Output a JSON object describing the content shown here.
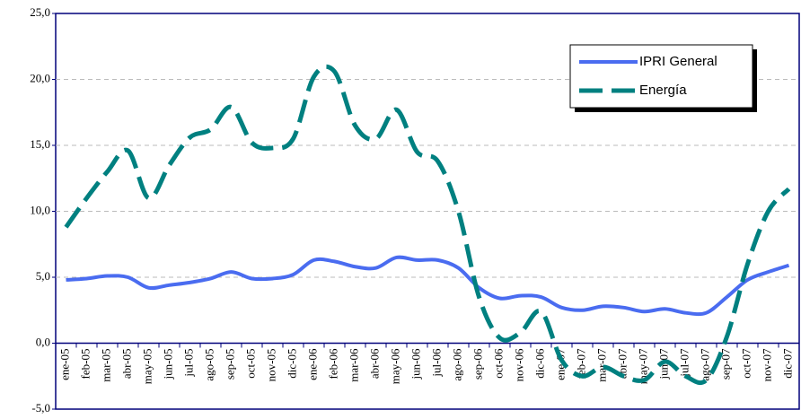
{
  "chart_data": {
    "type": "line",
    "categories": [
      "ene-05",
      "feb-05",
      "mar-05",
      "abr-05",
      "may-05",
      "jun-05",
      "jul-05",
      "ago-05",
      "sep-05",
      "oct-05",
      "nov-05",
      "dic-05",
      "ene-06",
      "feb-06",
      "mar-06",
      "abr-06",
      "may-06",
      "jun-06",
      "jul-06",
      "ago-06",
      "sep-06",
      "oct-06",
      "nov-06",
      "dic-06",
      "ene-07",
      "feb-07",
      "mar-07",
      "abr-07",
      "may-07",
      "jun-07",
      "jul-07",
      "ago-07",
      "sep-07",
      "oct-07",
      "nov-07",
      "dic-07"
    ],
    "series": [
      {
        "name": "IPRI General",
        "color": "#4a6cf0",
        "dashed": false,
        "values": [
          4.8,
          4.9,
          5.1,
          5.0,
          4.2,
          4.4,
          4.6,
          4.9,
          5.4,
          4.9,
          4.9,
          5.2,
          6.3,
          6.2,
          5.8,
          5.7,
          6.5,
          6.3,
          6.3,
          5.7,
          4.2,
          3.4,
          3.6,
          3.5,
          2.7,
          2.5,
          2.8,
          2.7,
          2.4,
          2.6,
          2.3,
          2.3,
          3.5,
          4.8,
          5.4,
          5.9
        ]
      },
      {
        "name": "Energía",
        "color": "#008080",
        "dashed": true,
        "values": [
          8.8,
          11.0,
          13.0,
          14.6,
          11.0,
          13.5,
          15.6,
          16.2,
          17.9,
          15.2,
          14.8,
          15.5,
          20.2,
          20.6,
          16.5,
          15.5,
          17.7,
          14.5,
          13.8,
          10.0,
          3.5,
          0.4,
          0.8,
          2.4,
          -1.3,
          -2.5,
          -1.8,
          -2.5,
          -2.8,
          -1.4,
          -2.5,
          -2.8,
          0.5,
          6.0,
          10.0,
          11.7
        ]
      }
    ],
    "ylim": [
      -5,
      25
    ],
    "yticks": [
      {
        "value": -5,
        "label": "-5,0"
      },
      {
        "value": 0,
        "label": "0,0"
      },
      {
        "value": 5,
        "label": "5,0"
      },
      {
        "value": 10,
        "label": "10,0"
      },
      {
        "value": 15,
        "label": "15,0"
      },
      {
        "value": 20,
        "label": "20,0"
      },
      {
        "value": 25,
        "label": "25,0"
      }
    ],
    "grid": true,
    "legend": "top-right"
  }
}
